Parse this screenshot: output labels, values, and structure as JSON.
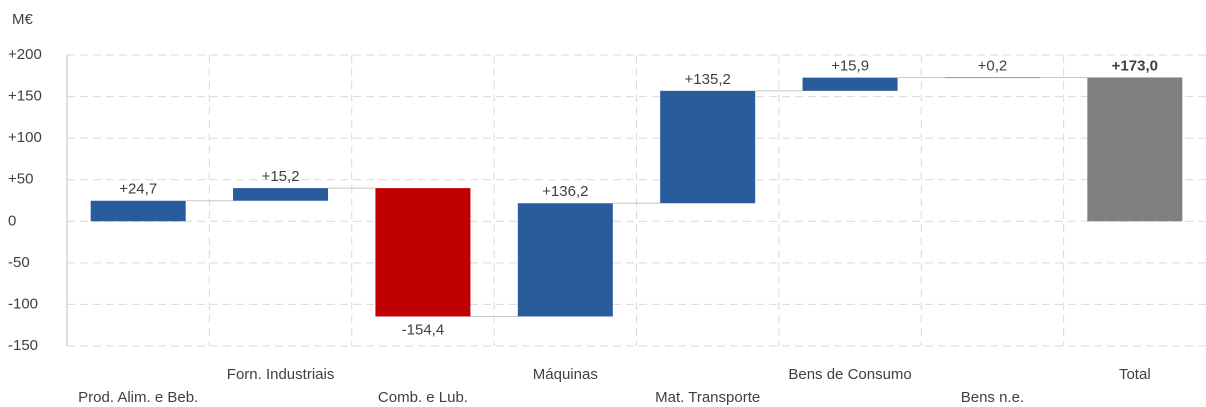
{
  "chart_data": {
    "type": "waterfall",
    "y_label": "M€",
    "categories": [
      "Prod. Alim. e Beb.",
      "Forn. Industriais",
      "Comb. e Lub.",
      "Máquinas",
      "Mat. Transporte",
      "Bens de Consumo",
      "Bens n.e.",
      "Total"
    ],
    "values": [
      24.7,
      15.2,
      -154.4,
      136.2,
      135.2,
      15.9,
      0.2,
      173.0
    ],
    "value_labels": [
      "+24,7",
      "+15,2",
      "-154,4",
      "+136,2",
      "+135,2",
      "+15,9",
      "+0,2",
      "+173,0"
    ],
    "measure": [
      "relative",
      "relative",
      "relative",
      "relative",
      "relative",
      "relative",
      "relative",
      "total"
    ],
    "colors": {
      "increase": "#2a5b9a",
      "decrease": "#c00000",
      "total": "#808080"
    },
    "ylim": [
      -150,
      200
    ],
    "yticks": [
      {
        "value": 200,
        "label": "+200"
      },
      {
        "value": 150,
        "label": "+150"
      },
      {
        "value": 100,
        "label": "+100"
      },
      {
        "value": 50,
        "label": "+50"
      },
      0,
      -50,
      -100,
      -150
    ],
    "grid": true
  }
}
